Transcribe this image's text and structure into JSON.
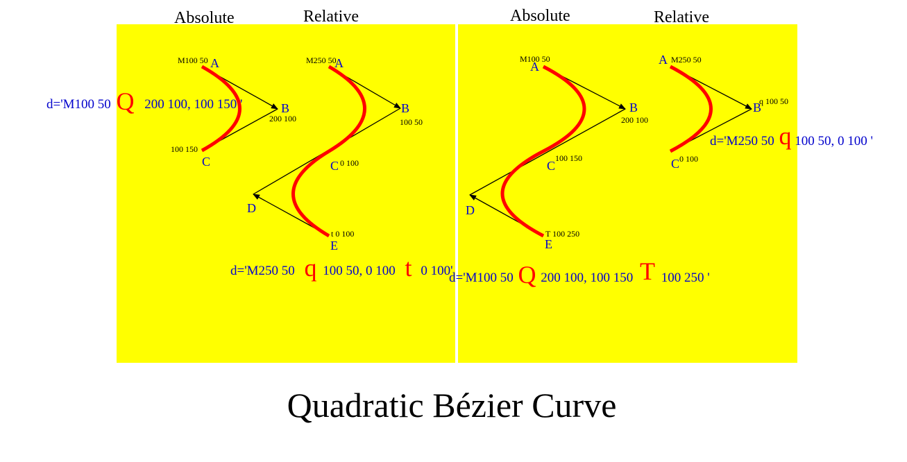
{
  "colors": {
    "panel": "#ffff00",
    "curve": "#ff0000",
    "label": "#0000cc",
    "line": "#000000"
  },
  "title": "Quadratic Bézier Curve",
  "headers": {
    "left_absolute": "Absolute",
    "left_relative": "Relative",
    "right_absolute": "Absolute",
    "right_relative": "Relative"
  },
  "left_panel": {
    "abs": {
      "points": {
        "a": "A",
        "b": "B",
        "c": "C"
      },
      "coords": {
        "a": "M100 50",
        "b": "200 100",
        "c": "100 150"
      },
      "code": {
        "prefix": "d='M100 50",
        "cmd": "Q",
        "rest": "200 100, 100 150 '"
      }
    },
    "rel": {
      "points": {
        "a": "A",
        "b": "B",
        "c": "C",
        "d": "D",
        "e": "E"
      },
      "coords": {
        "a": "M250 50",
        "b": "100 50",
        "c": "0 100",
        "e": "t 0 100"
      },
      "code": {
        "prefix": "d='M250 50",
        "cmd1": "q",
        "mid": "100 50,  0 100",
        "cmd2": "t",
        "rest": "0 100'"
      }
    }
  },
  "right_panel": {
    "abs": {
      "points": {
        "a": "A",
        "b": "B",
        "c": "C",
        "d": "D",
        "e": "E"
      },
      "coords": {
        "a": "M100 50",
        "b": "200 100",
        "c": "100 150",
        "e": "T 100 250"
      },
      "code": {
        "prefix": "d='M100 50",
        "cmd1": "Q",
        "mid": "200 100, 100 150",
        "cmd2": "T",
        "rest": "100 250 '"
      }
    },
    "rel": {
      "points": {
        "a": "A",
        "b": "B",
        "c": "C"
      },
      "coords": {
        "a": "M250 50",
        "b": "q 100 50",
        "c": "0 100"
      },
      "code": {
        "prefix": "d='M250 50",
        "cmd": "q",
        "rest": "100 50,  0 100 '"
      }
    }
  }
}
